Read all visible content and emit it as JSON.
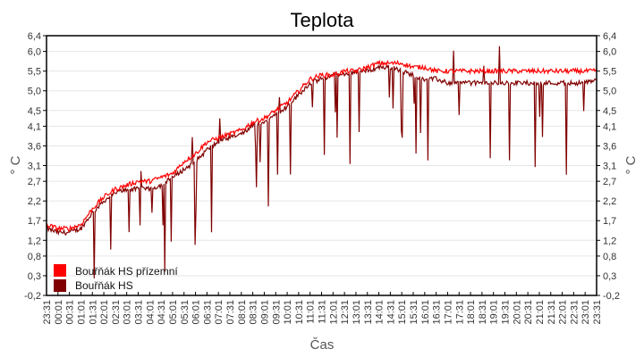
{
  "chart_data": {
    "type": "line",
    "title": "Teplota",
    "xlabel": "Čas",
    "ylabel": "° C",
    "ylim": [
      -0.2,
      6.4
    ],
    "yticks": [
      "6,4",
      "6,0",
      "5,5",
      "5,0",
      "4,5",
      "4,1",
      "3,6",
      "3,1",
      "2,7",
      "2,2",
      "1,7",
      "1,2",
      "0,8",
      "0,3",
      "-0,2"
    ],
    "ytick_values": [
      6.4,
      6.0,
      5.5,
      5.0,
      4.5,
      4.1,
      3.6,
      3.1,
      2.7,
      2.2,
      1.7,
      1.2,
      0.8,
      0.3,
      -0.2
    ],
    "grid": true,
    "legend_position": "lower-left inside",
    "x": [
      "23:31",
      "00:01",
      "00:31",
      "01:01",
      "01:31",
      "02:01",
      "02:31",
      "03:01",
      "03:31",
      "04:01",
      "04:31",
      "05:01",
      "05:31",
      "06:01",
      "06:31",
      "07:01",
      "07:31",
      "08:01",
      "08:31",
      "09:01",
      "09:31",
      "10:01",
      "10:31",
      "11:01",
      "11:31",
      "12:01",
      "12:31",
      "13:01",
      "13:31",
      "14:01",
      "14:31",
      "15:01",
      "15:31",
      "16:01",
      "16:31",
      "17:01",
      "17:31",
      "18:01",
      "18:31",
      "19:01",
      "19:31",
      "20:01",
      "20:31",
      "21:01",
      "21:31",
      "22:01",
      "22:31",
      "23:01",
      "23:31"
    ],
    "series": [
      {
        "name": "Bouřňák HS přízemní",
        "color": "#ff0000",
        "values": [
          1.6,
          1.5,
          1.5,
          1.6,
          2.0,
          2.3,
          2.5,
          2.6,
          2.7,
          2.7,
          2.8,
          2.9,
          3.2,
          3.4,
          3.7,
          3.8,
          3.9,
          4.0,
          4.2,
          4.3,
          4.5,
          4.7,
          5.0,
          5.3,
          5.4,
          5.4,
          5.5,
          5.5,
          5.6,
          5.7,
          5.7,
          5.7,
          5.6,
          5.6,
          5.5,
          5.5,
          5.5,
          5.5,
          5.5,
          5.5,
          5.5,
          5.5,
          5.5,
          5.5,
          5.5,
          5.5,
          5.5,
          5.5,
          5.5
        ]
      },
      {
        "name": "Bouřňák HS",
        "color": "#800000",
        "values": [
          1.5,
          1.4,
          1.4,
          1.5,
          1.9,
          2.2,
          2.4,
          2.5,
          2.5,
          2.5,
          2.6,
          2.8,
          3.0,
          3.2,
          3.5,
          3.7,
          3.8,
          3.9,
          4.1,
          4.2,
          4.4,
          4.6,
          4.9,
          5.2,
          5.3,
          5.4,
          5.4,
          5.5,
          5.5,
          5.6,
          5.6,
          5.5,
          5.4,
          5.3,
          5.3,
          5.2,
          5.2,
          5.2,
          5.2,
          5.2,
          5.2,
          5.2,
          5.2,
          5.2,
          5.2,
          5.2,
          5.2,
          5.2,
          5.3
        ]
      }
    ]
  },
  "legend": [
    {
      "label": "Bouřňák HS přízemní",
      "color": "#ff0000"
    },
    {
      "label": "Bouřňák HS",
      "color": "#800000"
    }
  ]
}
